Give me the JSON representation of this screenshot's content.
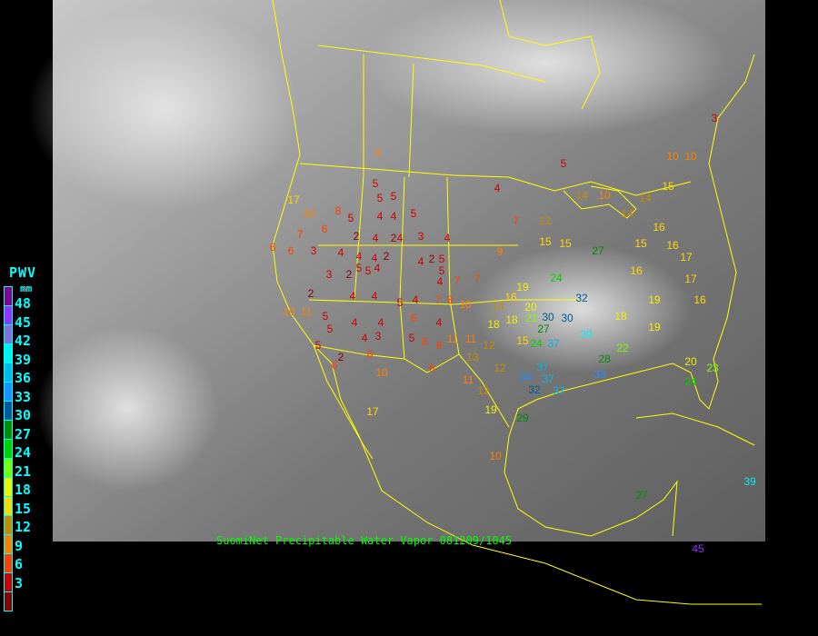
{
  "legend": {
    "title": "PWV",
    "unit": "mm",
    "ticks": [
      "48",
      "45",
      "42",
      "39",
      "36",
      "33",
      "30",
      "27",
      "24",
      "21",
      "18",
      "15",
      "12",
      "9",
      "6",
      "3"
    ],
    "colors": [
      "#8b008b",
      "#9b30ff",
      "#8470d8",
      "#00f0f0",
      "#00b8e8",
      "#1e90ff",
      "#005a9a",
      "#008c00",
      "#00d000",
      "#7cfc00",
      "#f0f000",
      "#ffd700",
      "#c88a00",
      "#ff8000",
      "#ff4000",
      "#d00000",
      "#8b0000"
    ]
  },
  "caption": "SuomiNet Precipitable Water Vapor 081209/1045",
  "map": {
    "background": "grey infrared satellite imagery",
    "boundary_color": "#ffff00"
  },
  "stations": [
    9,
    5,
    3,
    10,
    10,
    4,
    17,
    10,
    8,
    5,
    5,
    5,
    5,
    4,
    4,
    5,
    4,
    3,
    2,
    4,
    2,
    4,
    7,
    6,
    6,
    6,
    3,
    4,
    4,
    4,
    2,
    4,
    2,
    5,
    5,
    4,
    3,
    2,
    5,
    5,
    4,
    7,
    7,
    7,
    12,
    15,
    15,
    27,
    9,
    2,
    4,
    4,
    4,
    5,
    7,
    8,
    10,
    14,
    16,
    19,
    20,
    24,
    32,
    30,
    30,
    10,
    11,
    5,
    5,
    4,
    4,
    6,
    4,
    18,
    18,
    21,
    27,
    3,
    4,
    5,
    8,
    8,
    11,
    11,
    12,
    15,
    24,
    37,
    39,
    22,
    5,
    2,
    6,
    6,
    10,
    6,
    13,
    12,
    37,
    34,
    37,
    28,
    33,
    32,
    37,
    11,
    19,
    17,
    29,
    10,
    27,
    39,
    45,
    19,
    20,
    23,
    24,
    16,
    16,
    17,
    17,
    14,
    15,
    14,
    10,
    14,
    15,
    16,
    16,
    19,
    18,
    12
  ]
}
